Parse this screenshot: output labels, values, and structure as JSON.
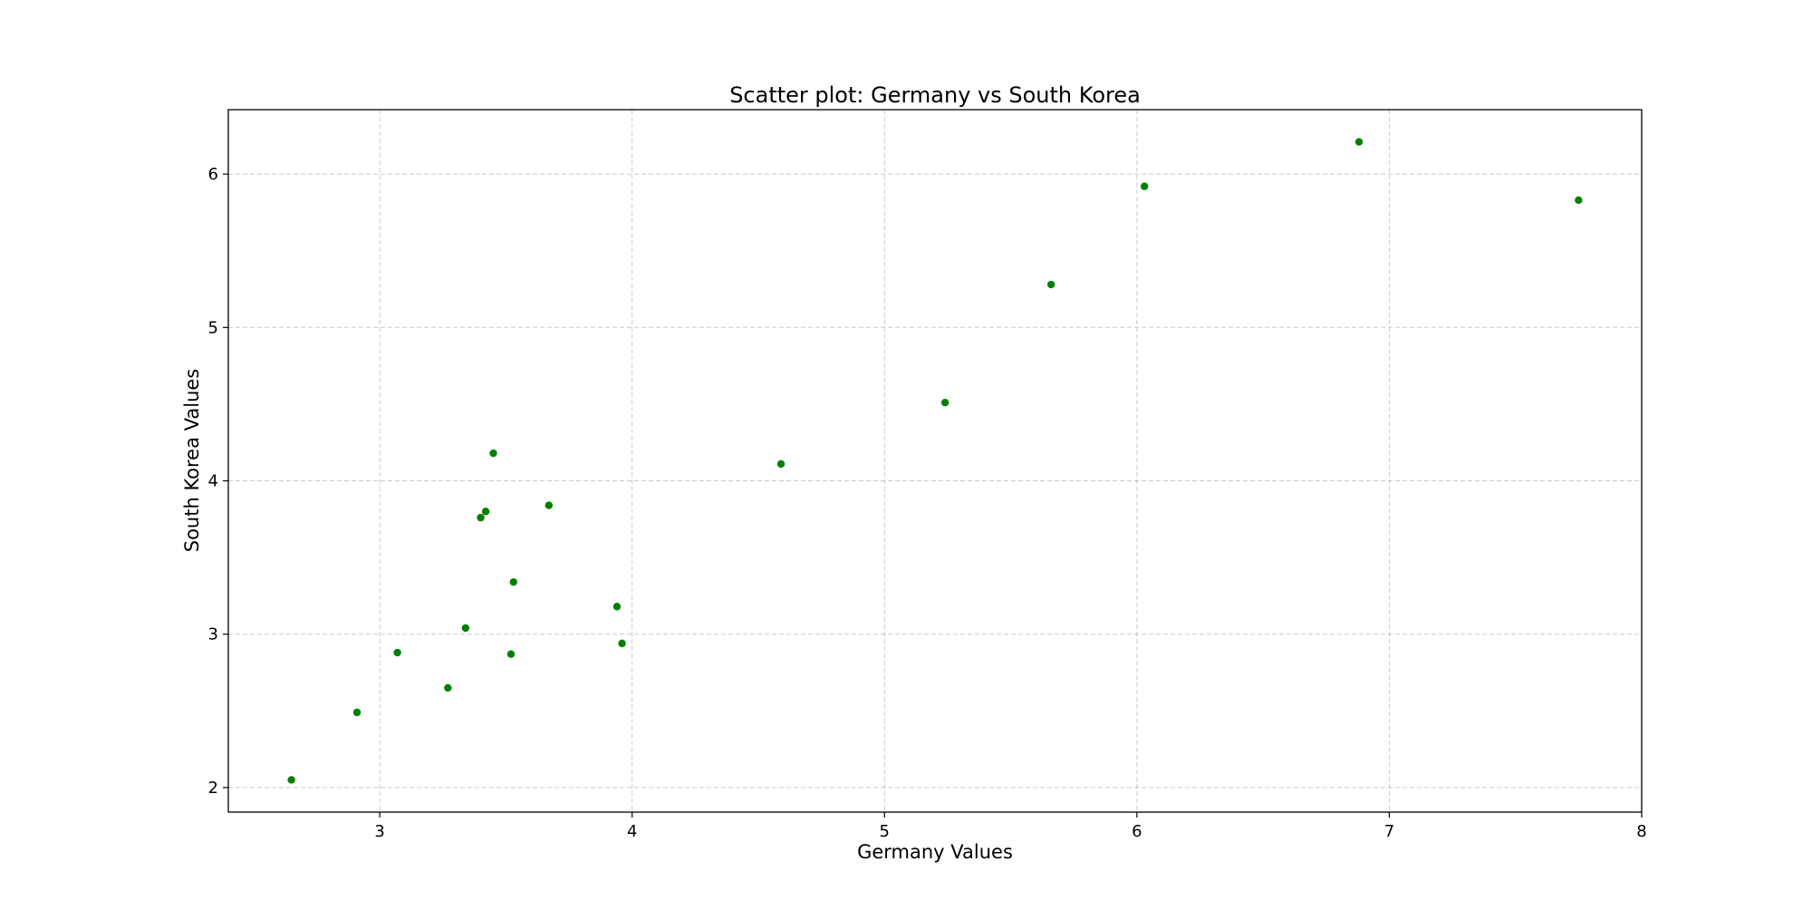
{
  "chart_data": {
    "type": "scatter",
    "title": "Scatter plot: Germany vs South Korea",
    "xlabel": "Germany Values",
    "ylabel": "South Korea Values",
    "xlim": [
      2.4,
      8.0
    ],
    "ylim": [
      1.84,
      6.42
    ],
    "xticks": [
      3,
      4,
      5,
      6,
      7,
      8
    ],
    "yticks": [
      2,
      3,
      4,
      5,
      6
    ],
    "grid": true,
    "marker_color": "#008000",
    "series": [
      {
        "points": [
          {
            "x": 2.65,
            "y": 2.05
          },
          {
            "x": 2.91,
            "y": 2.49
          },
          {
            "x": 3.07,
            "y": 2.88
          },
          {
            "x": 3.27,
            "y": 2.65
          },
          {
            "x": 3.34,
            "y": 3.04
          },
          {
            "x": 3.4,
            "y": 3.76
          },
          {
            "x": 3.42,
            "y": 3.8
          },
          {
            "x": 3.45,
            "y": 4.18
          },
          {
            "x": 3.52,
            "y": 2.87
          },
          {
            "x": 3.53,
            "y": 3.34
          },
          {
            "x": 3.67,
            "y": 3.84
          },
          {
            "x": 3.94,
            "y": 3.18
          },
          {
            "x": 3.96,
            "y": 2.94
          },
          {
            "x": 4.59,
            "y": 4.11
          },
          {
            "x": 5.24,
            "y": 4.51
          },
          {
            "x": 5.66,
            "y": 5.28
          },
          {
            "x": 6.03,
            "y": 5.92
          },
          {
            "x": 6.88,
            "y": 6.21
          },
          {
            "x": 7.75,
            "y": 5.83
          }
        ]
      }
    ]
  }
}
